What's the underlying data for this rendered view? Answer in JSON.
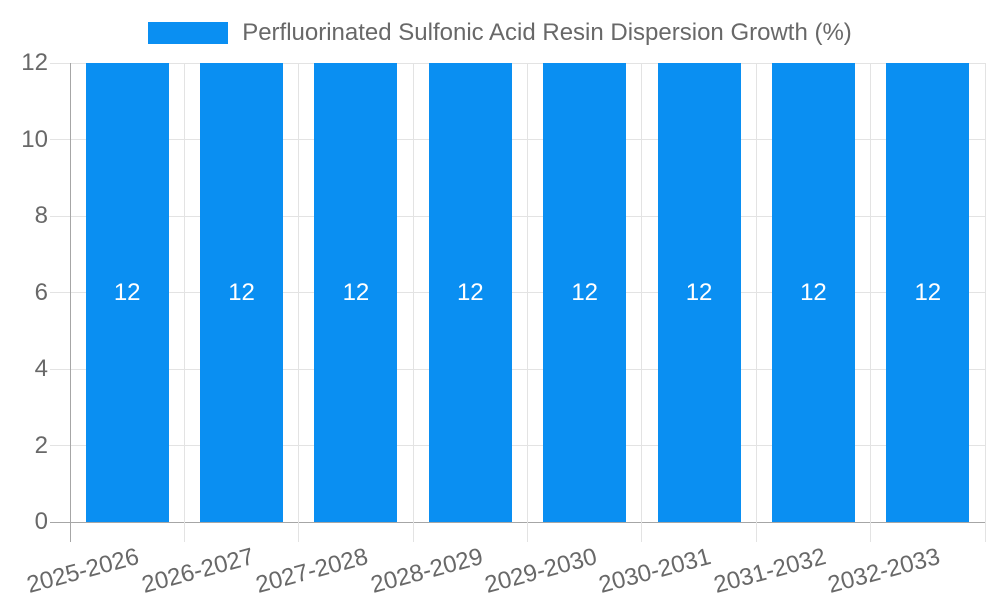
{
  "chart_data": {
    "type": "bar",
    "title": "Perfluorinated Sulfonic Acid Resin Dispersion Growth (%)",
    "categories": [
      "2025-2026",
      "2026-2027",
      "2027-2028",
      "2028-2029",
      "2029-2030",
      "2030-2031",
      "2031-2032",
      "2032-2033"
    ],
    "series": [
      {
        "name": "Perfluorinated Sulfonic Acid Resin Dispersion Growth (%)",
        "values": [
          12,
          12,
          12,
          12,
          12,
          12,
          12,
          12
        ],
        "data_labels": [
          "12",
          "12",
          "12",
          "12",
          "12",
          "12",
          "12",
          "12"
        ]
      }
    ],
    "xlabel": "",
    "ylabel": "",
    "ylim": [
      0,
      12
    ],
    "yticks": [
      0,
      2,
      4,
      6,
      8,
      10,
      12
    ],
    "grid": true,
    "legend_position": "top",
    "colors": {
      "bar": "#0a8ff2",
      "bar_label_text": "#ffffff",
      "axis_text": "#686868",
      "gridline": "#e3e3e3",
      "zero_line": "#a6a6a6",
      "background": "#ffffff"
    }
  }
}
